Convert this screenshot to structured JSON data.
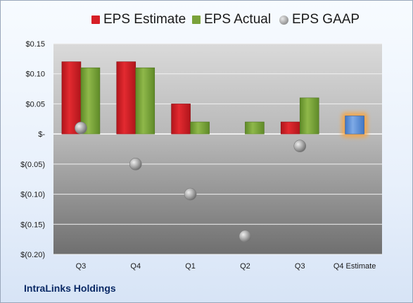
{
  "chart_data": {
    "type": "bar",
    "title": "",
    "xlabel": "",
    "ylabel": "",
    "categories": [
      "Q3",
      "Q4",
      "Q1",
      "Q2",
      "Q3",
      "Q4 Estimate"
    ],
    "series": [
      {
        "name": "EPS Estimate",
        "kind": "bar",
        "color": "#d61f26",
        "values": [
          0.12,
          0.12,
          0.05,
          null,
          0.02,
          null
        ]
      },
      {
        "name": "EPS Actual",
        "kind": "bar",
        "color": "#7aa23a",
        "values": [
          0.11,
          0.11,
          0.02,
          0.02,
          0.06,
          null
        ]
      },
      {
        "name": "EPS GAAP",
        "kind": "marker",
        "color": "#a6a6a6",
        "values": [
          0.01,
          -0.05,
          -0.1,
          -0.17,
          -0.02,
          null
        ]
      },
      {
        "name": "",
        "kind": "bar",
        "color": "#5b8fd6",
        "highlight": "#f7a440",
        "values": [
          null,
          null,
          null,
          null,
          null,
          0.03
        ]
      }
    ],
    "ylim": [
      -0.2,
      0.15
    ],
    "y_ticks": [
      {
        "value": 0.15,
        "label": "$0.15"
      },
      {
        "value": 0.1,
        "label": "$0.10"
      },
      {
        "value": 0.05,
        "label": "$0.05"
      },
      {
        "value": 0.0,
        "label": "$-"
      },
      {
        "value": -0.05,
        "label": "$(0.05)"
      },
      {
        "value": -0.1,
        "label": "$(0.10)"
      },
      {
        "value": -0.15,
        "label": "$(0.15)"
      },
      {
        "value": -0.2,
        "label": "$(0.20)"
      }
    ],
    "grid": true,
    "legend": "top"
  },
  "legend": {
    "estimate_label": "EPS Estimate",
    "actual_label": "EPS Actual",
    "gaap_label": "EPS GAAP"
  },
  "footer": {
    "company": "IntraLinks Holdings"
  }
}
